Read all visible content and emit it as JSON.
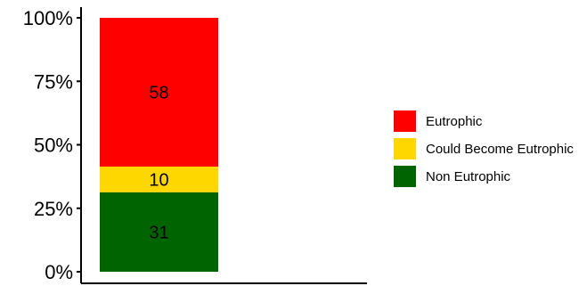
{
  "chart_data": {
    "type": "bar",
    "stacked": true,
    "percent": true,
    "categories": [
      ""
    ],
    "series": [
      {
        "name": "Non Eutrophic",
        "values": [
          31
        ],
        "color": "#006400"
      },
      {
        "name": "Could Become Eutrophic",
        "values": [
          10
        ],
        "color": "#FFD700"
      },
      {
        "name": "Eutrophic",
        "values": [
          58
        ],
        "color": "#FF0000"
      }
    ],
    "data_labels": [
      "31",
      "10",
      "58"
    ],
    "title": "",
    "xlabel": "",
    "ylabel": "",
    "ylim": [
      0,
      100
    ],
    "y_ticks": [
      "0%",
      "25%",
      "50%",
      "75%",
      "100%"
    ],
    "grid": false,
    "legend": {
      "position": "right",
      "entries": [
        "Eutrophic",
        "Could Become Eutrophic",
        "Non Eutrophic"
      ]
    }
  }
}
